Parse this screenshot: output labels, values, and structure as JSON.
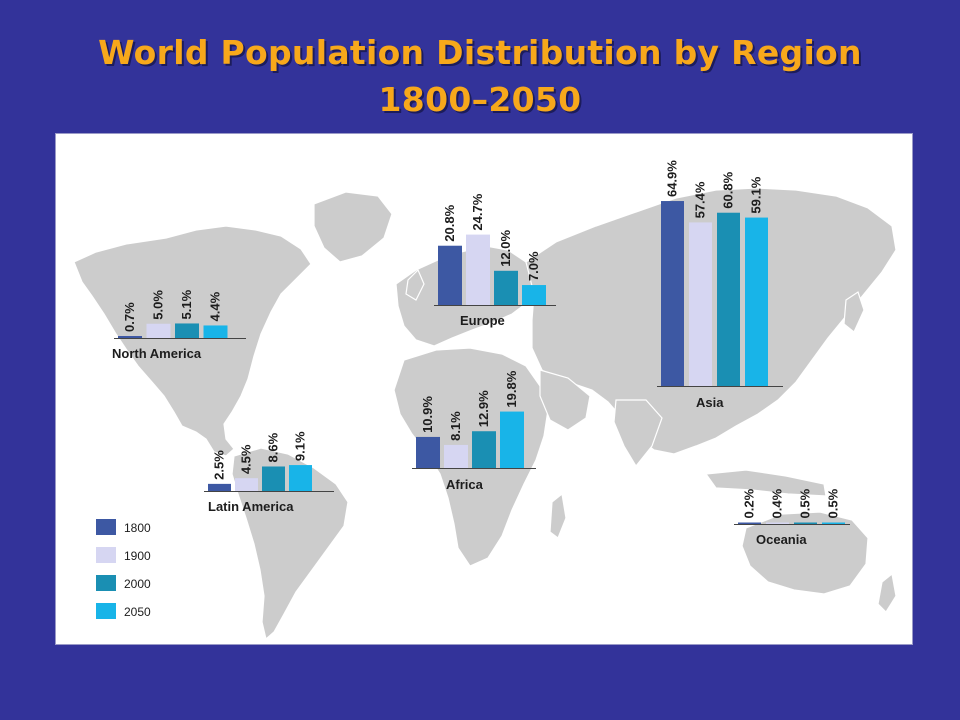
{
  "title": {
    "line1": "World Population Distribution by Region",
    "line2": "1800–2050"
  },
  "colors": {
    "background": "#33339a",
    "title": "#f7a81b",
    "map": "#cccccc",
    "series": [
      "#3d58a3",
      "#d6d6f2",
      "#1a8fb3",
      "#18b4e8"
    ]
  },
  "chart_data": {
    "type": "bar",
    "title": "World Population Distribution by Region 1800–2050",
    "legend": [
      "1800",
      "1900",
      "2000",
      "2050"
    ],
    "legend_position": "bottom-left",
    "series_names": [
      "1800",
      "1900",
      "2000",
      "2050"
    ],
    "regions": [
      {
        "name": "North America",
        "values": [
          0.7,
          5.0,
          5.1,
          4.4
        ],
        "labels": [
          "0.7%",
          "5.0%",
          "5.1%",
          "4.4%"
        ]
      },
      {
        "name": "Europe",
        "values": [
          20.8,
          24.7,
          12.0,
          7.0
        ],
        "labels": [
          "20.8%",
          "24.7%",
          "12.0%",
          "7.0%"
        ]
      },
      {
        "name": "Asia",
        "values": [
          64.9,
          57.4,
          60.8,
          59.1
        ],
        "labels": [
          "64.9%",
          "57.4%",
          "60.8%",
          "59.1%"
        ]
      },
      {
        "name": "Latin America",
        "values": [
          2.5,
          4.5,
          8.6,
          9.1
        ],
        "labels": [
          "2.5%",
          "4.5%",
          "8.6%",
          "9.1%"
        ]
      },
      {
        "name": "Africa",
        "values": [
          10.9,
          8.1,
          12.9,
          19.8
        ],
        "labels": [
          "10.9%",
          "8.1%",
          "12.9%",
          "19.8%"
        ]
      },
      {
        "name": "Oceania",
        "values": [
          0.2,
          0.4,
          0.5,
          0.5
        ],
        "labels": [
          "0.2%",
          "0.4%",
          "0.5%",
          "0.5%"
        ]
      }
    ]
  }
}
